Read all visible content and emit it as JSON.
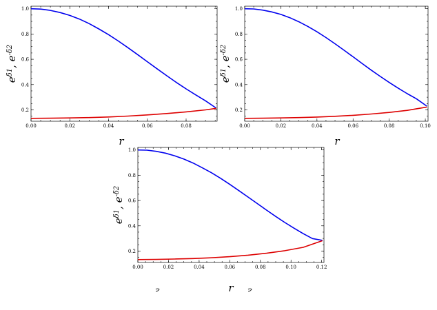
{
  "chart_data": [
    {
      "type": "line",
      "xlabel": "r",
      "ylabel": "e^{δ1}, e^{-δ2}",
      "xlim": [
        0,
        0.096
      ],
      "ylim": [
        0.11,
        1.02
      ],
      "xticks": [
        "0.00",
        "0.02",
        "0.04",
        "0.06",
        "0.08"
      ],
      "xtick_values": [
        0,
        0.02,
        0.04,
        0.06,
        0.08
      ],
      "yticks": [
        "0.2",
        "0.4",
        "0.6",
        "0.8",
        "1.0"
      ],
      "ytick_values": [
        0.2,
        0.4,
        0.6,
        0.8,
        1.0
      ],
      "series": [
        {
          "color": "#0000ee",
          "x": [
            0,
            0.005,
            0.01,
            0.015,
            0.02,
            0.025,
            0.03,
            0.035,
            0.04,
            0.045,
            0.05,
            0.055,
            0.06,
            0.065,
            0.07,
            0.075,
            0.08,
            0.085,
            0.09,
            0.0955
          ],
          "y": [
            1.0,
            0.997,
            0.987,
            0.97,
            0.947,
            0.918,
            0.882,
            0.84,
            0.795,
            0.745,
            0.692,
            0.637,
            0.581,
            0.525,
            0.47,
            0.417,
            0.366,
            0.318,
            0.272,
            0.214
          ]
        },
        {
          "color": "#dd0000",
          "x": [
            0,
            0.01,
            0.02,
            0.03,
            0.04,
            0.05,
            0.06,
            0.07,
            0.08,
            0.09,
            0.0955
          ],
          "y": [
            0.133,
            0.134,
            0.136,
            0.139,
            0.144,
            0.151,
            0.16,
            0.171,
            0.184,
            0.2,
            0.212
          ]
        }
      ]
    },
    {
      "type": "line",
      "xlabel": "r",
      "ylabel": "e^{δ1}, e^{-δ2}",
      "xlim": [
        0,
        0.1015
      ],
      "ylim": [
        0.11,
        1.02
      ],
      "xticks": [
        "0.00",
        "0.02",
        "0.04",
        "0.06",
        "0.08",
        "0.10"
      ],
      "xtick_values": [
        0,
        0.02,
        0.04,
        0.06,
        0.08,
        0.1
      ],
      "yticks": [
        "0.2",
        "0.4",
        "0.6",
        "0.8",
        "1.0"
      ],
      "ytick_values": [
        0.2,
        0.4,
        0.6,
        0.8,
        1.0
      ],
      "series": [
        {
          "color": "#0000ee",
          "x": [
            0,
            0.005,
            0.01,
            0.015,
            0.02,
            0.025,
            0.03,
            0.035,
            0.04,
            0.045,
            0.05,
            0.055,
            0.06,
            0.065,
            0.07,
            0.075,
            0.08,
            0.085,
            0.09,
            0.095,
            0.1008
          ],
          "y": [
            1.0,
            0.998,
            0.989,
            0.975,
            0.955,
            0.929,
            0.897,
            0.86,
            0.818,
            0.772,
            0.723,
            0.672,
            0.62,
            0.567,
            0.515,
            0.465,
            0.417,
            0.371,
            0.328,
            0.288,
            0.23
          ]
        },
        {
          "color": "#dd0000",
          "x": [
            0,
            0.01,
            0.02,
            0.03,
            0.04,
            0.05,
            0.06,
            0.07,
            0.08,
            0.09,
            0.1008
          ],
          "y": [
            0.133,
            0.134,
            0.136,
            0.139,
            0.143,
            0.149,
            0.157,
            0.167,
            0.18,
            0.196,
            0.222
          ]
        }
      ]
    },
    {
      "type": "line",
      "xlabel": "r",
      "ylabel": "e^{δ1}, e^{-δ2}",
      "xlim": [
        0,
        0.1215
      ],
      "ylim": [
        0.11,
        1.02
      ],
      "xticks": [
        "0.00",
        "0.02",
        "0.04",
        "0.06",
        "0.08",
        "0.10",
        "0.12"
      ],
      "xtick_values": [
        0,
        0.02,
        0.04,
        0.06,
        0.08,
        0.1,
        0.12
      ],
      "yticks": [
        "0.2",
        "0.4",
        "0.6",
        "0.8",
        "1.0"
      ],
      "ytick_values": [
        0.2,
        0.4,
        0.6,
        0.8,
        1.0
      ],
      "series": [
        {
          "color": "#0000ee",
          "x": [
            0,
            0.006,
            0.012,
            0.018,
            0.024,
            0.03,
            0.036,
            0.042,
            0.048,
            0.054,
            0.06,
            0.066,
            0.072,
            0.078,
            0.084,
            0.09,
            0.096,
            0.102,
            0.108,
            0.114,
            0.1205
          ],
          "y": [
            1.0,
            0.998,
            0.989,
            0.975,
            0.954,
            0.928,
            0.897,
            0.86,
            0.82,
            0.776,
            0.728,
            0.678,
            0.627,
            0.576,
            0.524,
            0.474,
            0.426,
            0.381,
            0.338,
            0.299,
            0.285
          ]
        },
        {
          "color": "#dd0000",
          "x": [
            0,
            0.012,
            0.024,
            0.036,
            0.048,
            0.06,
            0.072,
            0.084,
            0.096,
            0.108,
            0.1205
          ],
          "y": [
            0.133,
            0.134,
            0.137,
            0.141,
            0.147,
            0.156,
            0.168,
            0.183,
            0.203,
            0.23,
            0.282
          ]
        }
      ]
    }
  ]
}
